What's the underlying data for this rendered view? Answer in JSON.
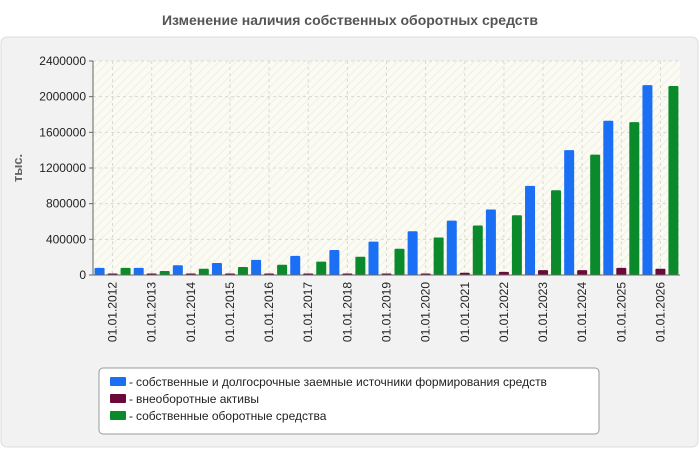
{
  "chart_data": {
    "type": "bar",
    "title": "Изменение наличия собственных оборотных средств",
    "ylabel": "тыс.",
    "xlabel": "",
    "ylim": [
      0,
      2400000
    ],
    "yticks": [
      0,
      400000,
      800000,
      1200000,
      1600000,
      2000000,
      2400000
    ],
    "grid": true,
    "legend_position": "bottom",
    "categories": [
      "01.01.2012",
      "01.01.2013",
      "01.01.2014",
      "01.01.2015",
      "01.01.2016",
      "01.01.2017",
      "01.01.2018",
      "01.01.2019",
      "01.01.2020",
      "01.01.2021",
      "01.01.2022",
      "01.01.2023",
      "01.01.2024",
      "01.01.2025",
      "01.01.2026"
    ],
    "series": [
      {
        "name": "собственные и долгосрочные заемные источники формирования средств",
        "color": "#1a6ff5",
        "values": [
          80000,
          80000,
          110000,
          135000,
          170000,
          215000,
          280000,
          375000,
          490000,
          610000,
          735000,
          1000000,
          1400000,
          1730000,
          2130000
        ]
      },
      {
        "name": "внеоборотные активы",
        "color": "#6b0a3a",
        "values": [
          5000,
          5000,
          8000,
          8000,
          10000,
          10000,
          12000,
          15000,
          15000,
          25000,
          35000,
          55000,
          55000,
          80000,
          70000
        ]
      },
      {
        "name": "собственные оборотные средства",
        "color": "#0b8a2c",
        "values": [
          80000,
          45000,
          70000,
          90000,
          115000,
          150000,
          205000,
          295000,
          420000,
          555000,
          670000,
          950000,
          1350000,
          1715000,
          2120000
        ]
      }
    ]
  }
}
